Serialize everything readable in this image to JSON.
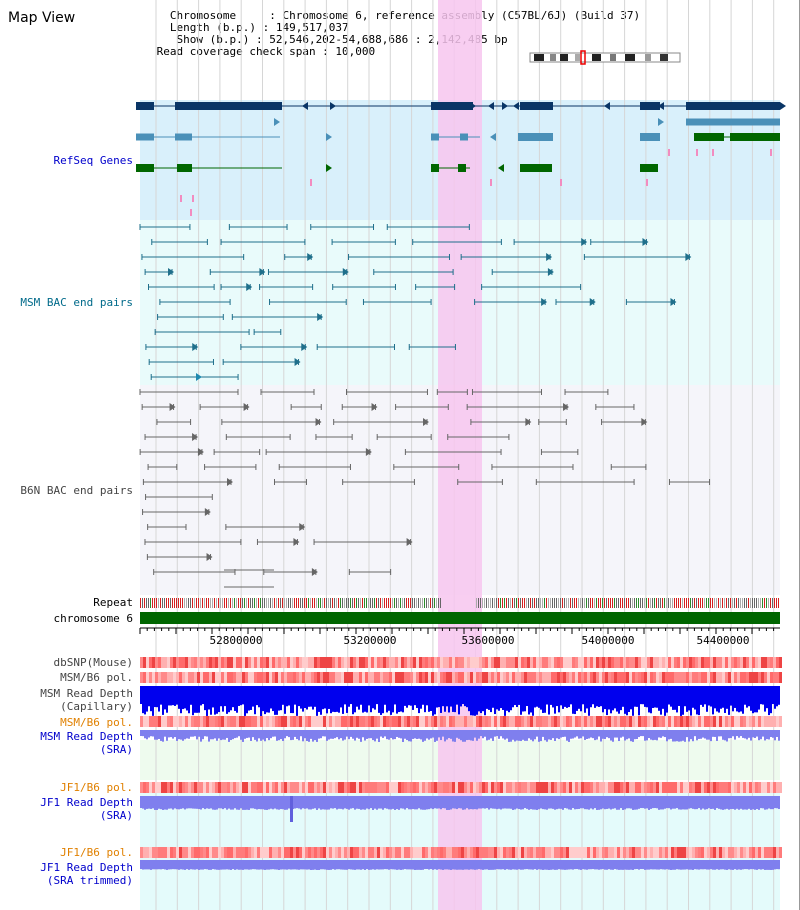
{
  "header": {
    "title": "Map View",
    "info_lines": [
      "   Chromosome     : Chromosome 6, reference assembly (C57BL/6J) (Build 37)",
      "   Length (b.p.) : 149,517,037",
      "    Show (b.p.) : 52,546,202-54,688,686 : 2,142,485 bp",
      " Read coverage check span : 10,000"
    ]
  },
  "tracks": {
    "refseq": "RefSeq Genes",
    "msm_bac": "MSM BAC end pairs",
    "b6n_bac": "B6N BAC end pairs",
    "repeat": "Repeat",
    "chromosome": "chromosome 6",
    "dbsnp": "dbSNP(Mouse)",
    "msm_b6_pol_1": "MSM/B6 pol.",
    "msm_read_depth_cap_1": "MSM Read Depth",
    "msm_read_depth_cap_2": "(Capillary)",
    "msm_b6_pol_2": "MSM/B6 pol.",
    "msm_read_depth_sra_1": "MSM Read Depth",
    "msm_read_depth_sra_2": "(SRA)",
    "jf1_b6_pol_1": "JF1/B6 pol.",
    "jf1_read_depth_sra_1": "JF1 Read Depth",
    "jf1_read_depth_sra_2": "(SRA)",
    "jf1_b6_pol_2": "JF1/B6 pol.",
    "jf1_read_depth_trim_1": "JF1 Read Depth",
    "jf1_read_depth_trim_2": "(SRA trimmed)"
  },
  "axis": {
    "ticks": [
      "52800000",
      "53200000",
      "53600000",
      "54000000",
      "54400000"
    ]
  },
  "colors": {
    "label_blue": "#0000cc",
    "label_teal": "#006a8a",
    "label_gray": "#444444",
    "label_orange": "#e08000",
    "highlight": "#f7c6ef",
    "refseq_bg": "#d9f0fb",
    "bac_bg": "#e9fbfb",
    "gene_navy": "#0a3566",
    "gene_steel": "#4a90b8",
    "gene_green": "#006600",
    "msm_teal": "#1f6f8b",
    "b6n_gray": "#666666",
    "depth_blue": "#0000ee",
    "depth_violet": "#7f7fee"
  }
}
